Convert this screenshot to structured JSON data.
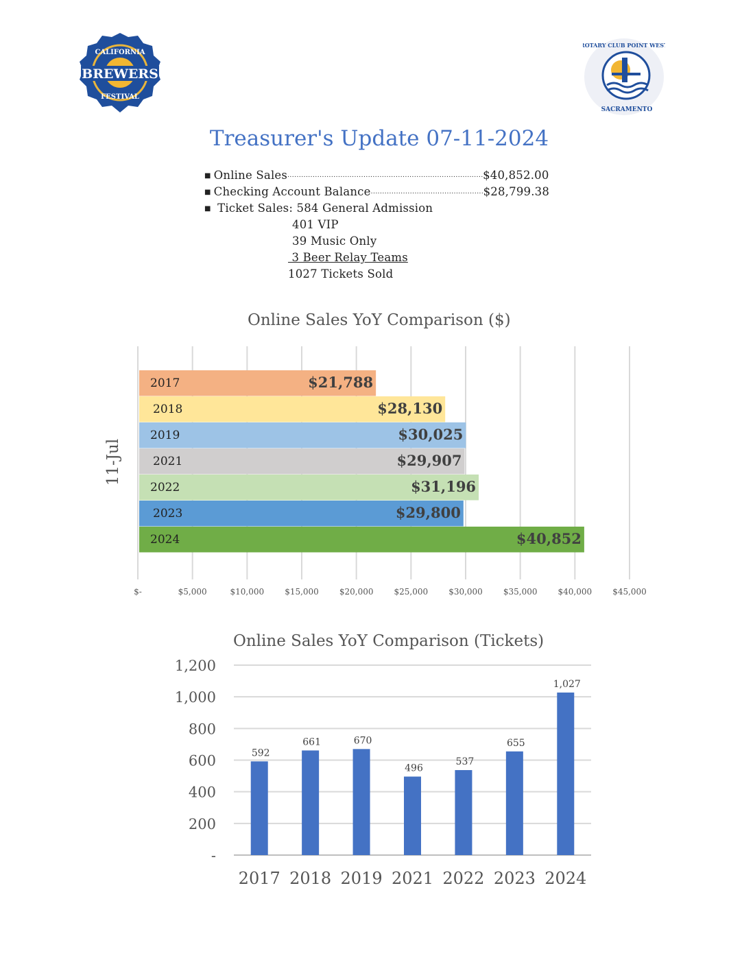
{
  "logos": {
    "left": {
      "text_top": "CALIFORNIA",
      "text_main": "BREWERS",
      "text_bottom": "FESTIVAL"
    },
    "right": {
      "text_top": "ROTARY CLUB POINT WEST",
      "text_bottom": "SACRAMENTO"
    }
  },
  "title": "Treasurer's Update 07-11-2024",
  "summary": {
    "online_sales_label": "Online Sales",
    "online_sales_value": "$40,852.00",
    "checking_label": "Checking Account Balance",
    "checking_value": "$28,799.38",
    "ticket_label": "Ticket Sales: 584 General Admission",
    "ticket_lines": [
      "401 VIP",
      "39 Music Only",
      " 3 Beer Relay Teams"
    ],
    "ticket_total": "1027 Tickets Sold"
  },
  "chart_data": [
    {
      "type": "bar",
      "orientation": "horizontal",
      "title": "Online Sales YoY Comparison ($)",
      "ylabel": "11-Jul",
      "xlabel": "",
      "xlim": [
        0,
        45000
      ],
      "grid": true,
      "categories": [
        "2017",
        "2018",
        "2019",
        "2021",
        "2022",
        "2023",
        "2024"
      ],
      "values": [
        21788,
        28130,
        30025,
        29907,
        31196,
        29800,
        40852
      ],
      "data_labels": [
        "$21,788",
        "$28,130",
        "$30,025",
        "$29,907",
        "$31,196",
        "$29,800",
        "$40,852"
      ],
      "colors": [
        "#f4b183",
        "#ffe699",
        "#9dc3e6",
        "#d0cece",
        "#c5e0b4",
        "#5b9bd5",
        "#70ad47"
      ],
      "xticks": [
        0,
        5000,
        10000,
        15000,
        20000,
        25000,
        30000,
        35000,
        40000,
        45000
      ],
      "xtick_labels": [
        "$-",
        "$5,000",
        "$10,000",
        "$15,000",
        "$20,000",
        "$25,000",
        "$30,000",
        "$35,000",
        "$40,000",
        "$45,000"
      ]
    },
    {
      "type": "bar",
      "title": "Online Sales YoY Comparison (Tickets)",
      "xlabel": "",
      "ylabel": "",
      "ylim": [
        0,
        1200
      ],
      "grid": true,
      "categories": [
        "2017",
        "2018",
        "2019",
        "2021",
        "2022",
        "2023",
        "2024"
      ],
      "values": [
        592,
        661,
        670,
        496,
        537,
        655,
        1027
      ],
      "data_labels": [
        "592",
        "661",
        "670",
        "496",
        "537",
        "655",
        "1,027"
      ],
      "color": "#4472c4",
      "yticks": [
        0,
        200,
        400,
        600,
        800,
        1000,
        1200
      ],
      "ytick_labels": [
        "-",
        "200",
        "400",
        "600",
        "800",
        "1,000",
        "1,200"
      ]
    }
  ]
}
